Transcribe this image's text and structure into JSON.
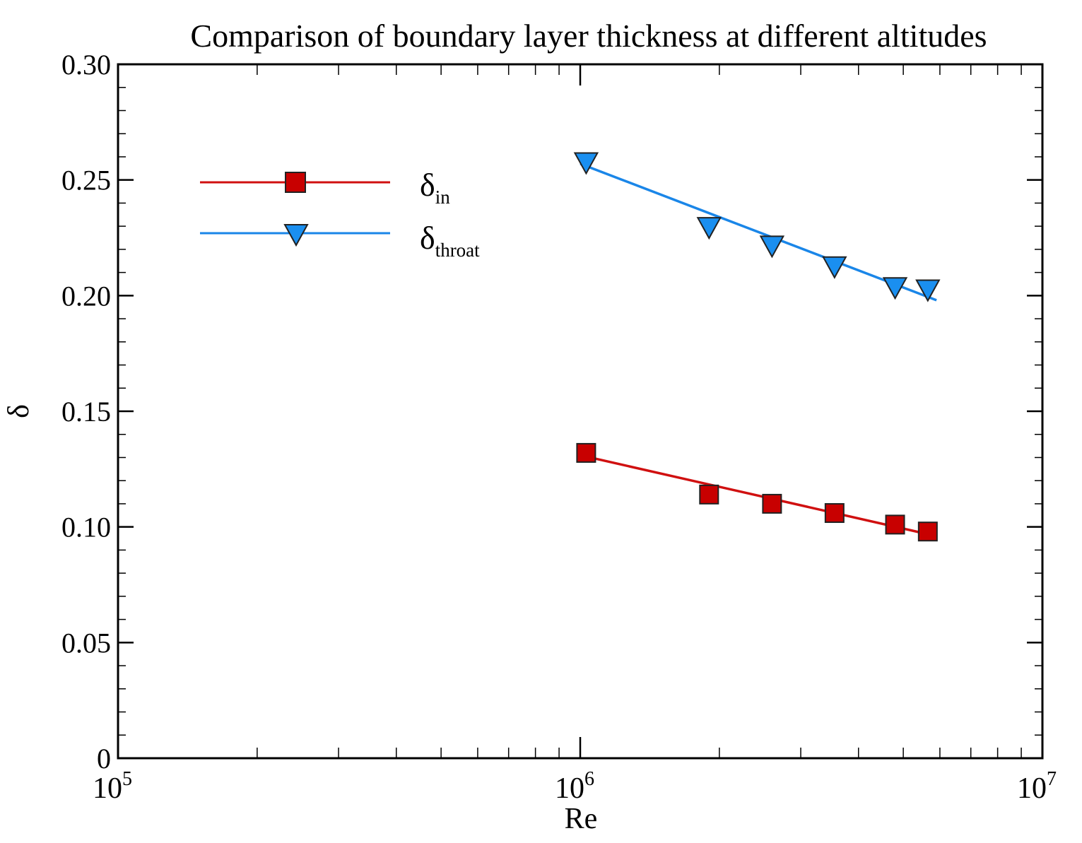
{
  "chart_data": {
    "type": "line",
    "title": "Comparison of boundary layer thickness at different altitudes",
    "xlabel": "Re",
    "ylabel": "δ",
    "xscale": "log",
    "xlim": [
      100000,
      10000000
    ],
    "ylim": [
      0,
      0.3
    ],
    "x_ticks": [
      {
        "value": 100000,
        "base": "10",
        "exp": "5"
      },
      {
        "value": 1000000,
        "base": "10",
        "exp": "6"
      },
      {
        "value": 10000000,
        "base": "10",
        "exp": "7"
      }
    ],
    "y_ticks": [
      {
        "value": 0,
        "label": "0"
      },
      {
        "value": 0.05,
        "label": "0.05"
      },
      {
        "value": 0.1,
        "label": "0.10"
      },
      {
        "value": 0.15,
        "label": "0.15"
      },
      {
        "value": 0.2,
        "label": "0.20"
      },
      {
        "value": 0.25,
        "label": "0.25"
      },
      {
        "value": 0.3,
        "label": "0.30"
      }
    ],
    "legend_position": "top-left",
    "series": [
      {
        "name": "δ",
        "subscript": "in",
        "color": "#d01010",
        "marker_fill": "#c80000",
        "marker": "square",
        "x": [
          1030000,
          1900000,
          2600000,
          3550000,
          4800000,
          5650000
        ],
        "y": [
          0.132,
          0.114,
          0.11,
          0.106,
          0.101,
          0.098
        ],
        "fit": {
          "x": [
            1000000,
            5900000
          ],
          "y": [
            0.131,
            0.096
          ]
        }
      },
      {
        "name": "δ",
        "subscript": "throat",
        "color": "#1a86e8",
        "marker_fill": "#1a8ff0",
        "marker": "triangle-down",
        "x": [
          1030000,
          1900000,
          2600000,
          3550000,
          4800000,
          5650000
        ],
        "y": [
          0.258,
          0.23,
          0.222,
          0.213,
          0.204,
          0.203
        ],
        "fit": {
          "x": [
            1000000,
            5900000
          ],
          "y": [
            0.257,
            0.198
          ]
        }
      }
    ]
  }
}
